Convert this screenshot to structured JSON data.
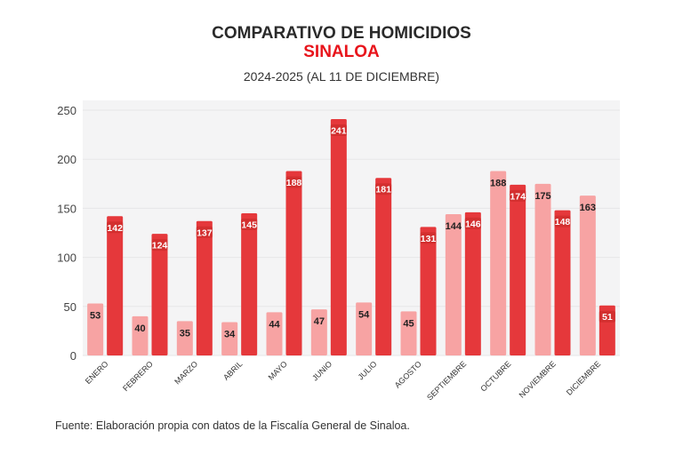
{
  "title": "COMPARATIVO DE HOMICIDIOS",
  "subtitle": "SINALOA",
  "period": "2024-2025 (AL 11 DE DICIEMBRE)",
  "source": "Fuente: Elaboración propia con datos de la Fiscalía General de Sinaloa.",
  "chart_data": {
    "type": "bar",
    "title": "COMPARATIVO DE HOMICIDIOS",
    "categories": [
      "ENERO",
      "FEBRERO",
      "MARZO",
      "ABRIL",
      "MAYO",
      "JUNIO",
      "JULIO",
      "AGOSTO",
      "SEPTIEMBRE",
      "OCTUBRE",
      "NOVIEMBRE",
      "DICIEMBRE"
    ],
    "series": [
      {
        "values": [
          53,
          40,
          35,
          34,
          44,
          47,
          54,
          45,
          144,
          188,
          175,
          163
        ],
        "color": "#f7a3a3"
      },
      {
        "values": [
          142,
          124,
          137,
          145,
          188,
          241,
          181,
          131,
          146,
          174,
          148,
          51
        ],
        "color": "#e5383b"
      }
    ],
    "yticks": [
      0,
      50,
      100,
      150,
      200,
      250
    ],
    "ylim": [
      0,
      260
    ],
    "grid": true,
    "legend": "none",
    "data_labels": true,
    "plot_background": "#f4f4f5"
  }
}
